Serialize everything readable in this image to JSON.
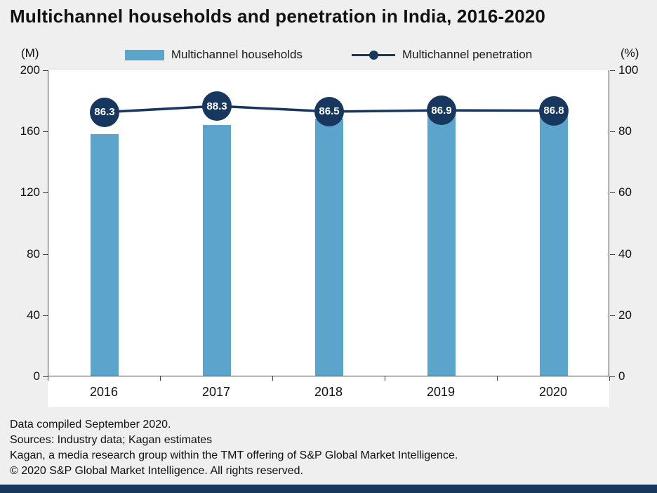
{
  "chart_data": {
    "type": "combo-bar-line",
    "title": "Multichannel households and penetration in India, 2016-2020",
    "categories": [
      "2016",
      "2017",
      "2018",
      "2019",
      "2020"
    ],
    "series": [
      {
        "name": "Multichannel households",
        "type": "bar",
        "axis": "left",
        "values": [
          158,
          164,
          168,
          171,
          173
        ],
        "color": "#5BA4CC"
      },
      {
        "name": "Multichannel penetration",
        "type": "line",
        "axis": "right",
        "values": [
          86.3,
          88.3,
          86.5,
          86.9,
          86.8
        ],
        "color": "#17375E"
      }
    ],
    "left_axis": {
      "unit": "(M)",
      "min": 0,
      "max": 200,
      "ticks": [
        0,
        40,
        80,
        120,
        160,
        200
      ]
    },
    "right_axis": {
      "unit": "(%)",
      "min": 0,
      "max": 100,
      "ticks": [
        0,
        20,
        40,
        60,
        80,
        100
      ]
    },
    "legend_position": "top",
    "grid": false
  },
  "colors": {
    "bar": "#5BA4CC",
    "navy": "#17375E",
    "background": "#efeff0"
  },
  "footer": {
    "lines": [
      "Data compiled September 2020.",
      "Sources: Industry data; Kagan estimates",
      "Kagan, a media research group within the TMT offering of S&P Global Market Intelligence.",
      "© 2020 S&P Global Market Intelligence. All rights reserved."
    ]
  }
}
